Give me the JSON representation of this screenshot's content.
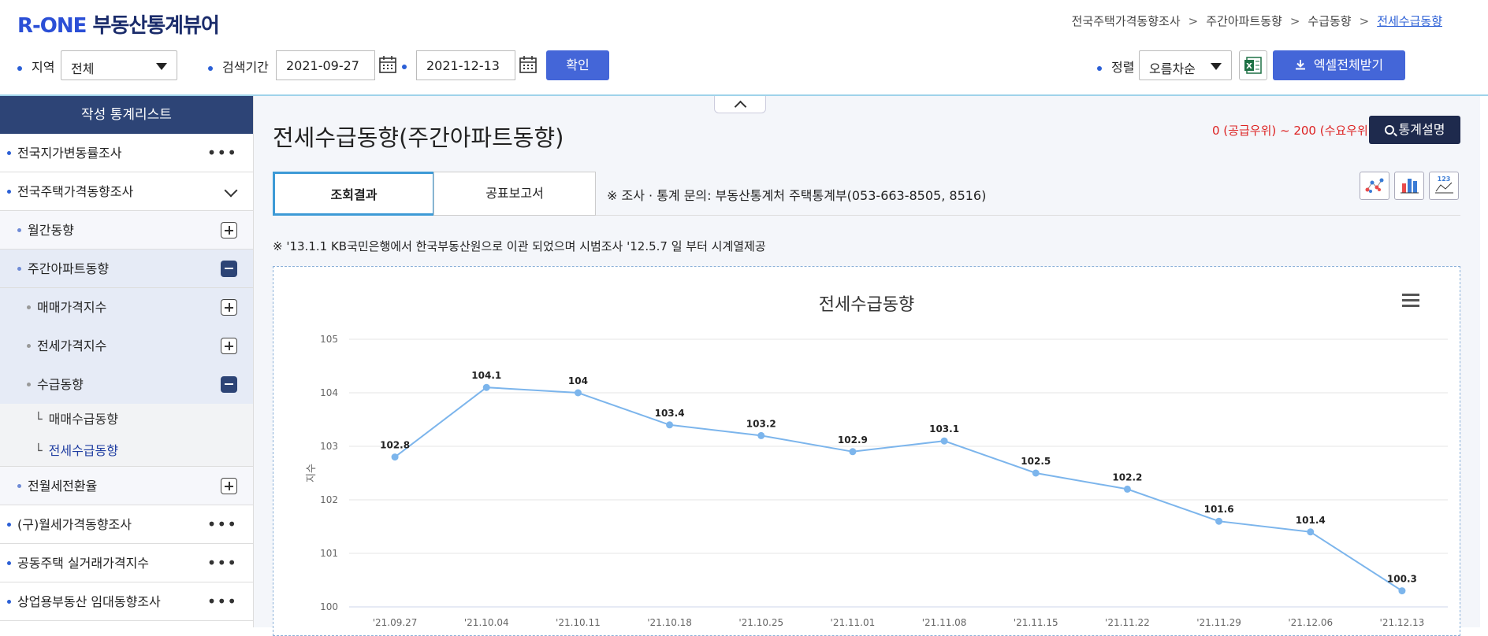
{
  "header": {
    "logo_brand": "R-ONE",
    "logo_text": "부동산통계뷰어",
    "breadcrumb": [
      "전국주택가격동향조사",
      "주간아파트동향",
      "수급동향",
      "전세수급동향"
    ]
  },
  "filters": {
    "region_label": "지역",
    "region_value": "전체",
    "period_label": "검색기간",
    "date_from": "2021-09-27",
    "date_sep": "~",
    "date_to": "2021-12-13",
    "confirm_label": "확인",
    "sort_label": "정렬",
    "sort_value": "오름차순",
    "excel_all_label": "엑셀전체받기"
  },
  "sidebar": {
    "header": "작성 통계리스트",
    "items": [
      {
        "label": "전국지가변동률조사"
      },
      {
        "label": "전국주택가격동향조사"
      },
      {
        "label": "월간동향"
      },
      {
        "label": "주간아파트동향"
      },
      {
        "label": "매매가격지수"
      },
      {
        "label": "전세가격지수"
      },
      {
        "label": "수급동향"
      },
      {
        "label": "매매수급동향"
      },
      {
        "label": "전세수급동향"
      },
      {
        "label": "전월세전환율"
      },
      {
        "label": "(구)월세가격동향조사"
      },
      {
        "label": "공동주택 실거래가격지수"
      },
      {
        "label": "상업용부동산 임대동향조사"
      }
    ],
    "sub_mark": "└"
  },
  "main": {
    "title": "전세수급동향(주간아파트동향)",
    "range_note": "0 (공급우위) ~ 200 (수요우위)",
    "stats_button": "통계설명",
    "tabs": [
      "조회결과",
      "공표보고서"
    ],
    "inquiry": "※ 조사 · 통계 문의: 부동산통계처 주택통계부(053-663-8505, 8516)",
    "notice": "※ '13.1.1 KB국민은행에서 한국부동산원으로 이관 되었으며 시범조사 '12.5.7 일 부터 시계열제공"
  },
  "colors": {
    "accent": "#4466d8",
    "nav_dark": "#2d4476",
    "line": "#7cb5ec",
    "note_red": "#dd2222"
  },
  "chart_data": {
    "type": "line",
    "title": "전세수급동향",
    "ylabel": "지수",
    "xlabel": "",
    "x": [
      "'21.09.27",
      "'21.10.04",
      "'21.10.11",
      "'21.10.18",
      "'21.10.25",
      "'21.11.01",
      "'21.11.08",
      "'21.11.15",
      "'21.11.22",
      "'21.11.29",
      "'21.12.06",
      "'21.12.13"
    ],
    "series": [
      {
        "values": [
          102.8,
          104.1,
          104,
          103.4,
          103.2,
          102.9,
          103.1,
          102.5,
          102.2,
          101.6,
          101.4,
          100.3
        ]
      }
    ],
    "y_ticks": [
      100,
      101,
      102,
      103,
      104,
      105
    ],
    "ylim": [
      100,
      105
    ],
    "grid": true
  }
}
